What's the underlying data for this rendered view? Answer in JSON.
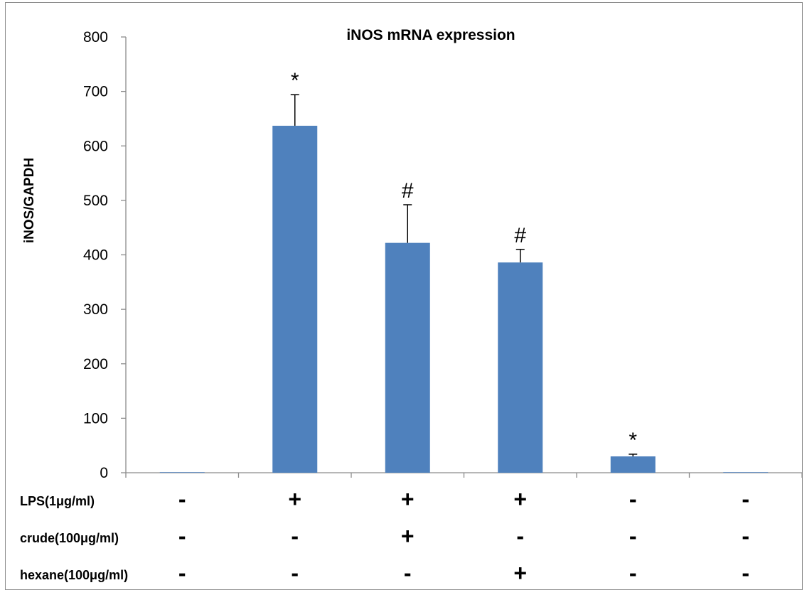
{
  "chart_data": {
    "type": "bar",
    "title": "iNOS mRNA expression",
    "xlabel": "",
    "ylabel": "iNOS/GAPDH",
    "ylim": [
      0,
      800
    ],
    "yticks": [
      0,
      100,
      200,
      300,
      400,
      500,
      600,
      700,
      800
    ],
    "grid": false,
    "legend": "none",
    "bar_color": "#4f81bd",
    "categories_count": 6,
    "values": [
      1,
      637,
      422,
      386,
      30,
      0
    ],
    "errors": [
      0,
      57,
      70,
      24,
      4,
      0
    ],
    "annotations": [
      "",
      "*",
      "#",
      "#",
      "*",
      ""
    ],
    "conditions": [
      {
        "label": "LPS(1μg/ml)",
        "signs": [
          "-",
          "+",
          "+",
          "+",
          "-",
          "-"
        ]
      },
      {
        "label": "crude(100μg/ml)",
        "signs": [
          "-",
          "-",
          "+",
          "-",
          "-",
          "-"
        ]
      },
      {
        "label": "hexane(100μg/ml)",
        "signs": [
          "-",
          "-",
          "-",
          "+",
          "-",
          "-"
        ]
      }
    ]
  }
}
